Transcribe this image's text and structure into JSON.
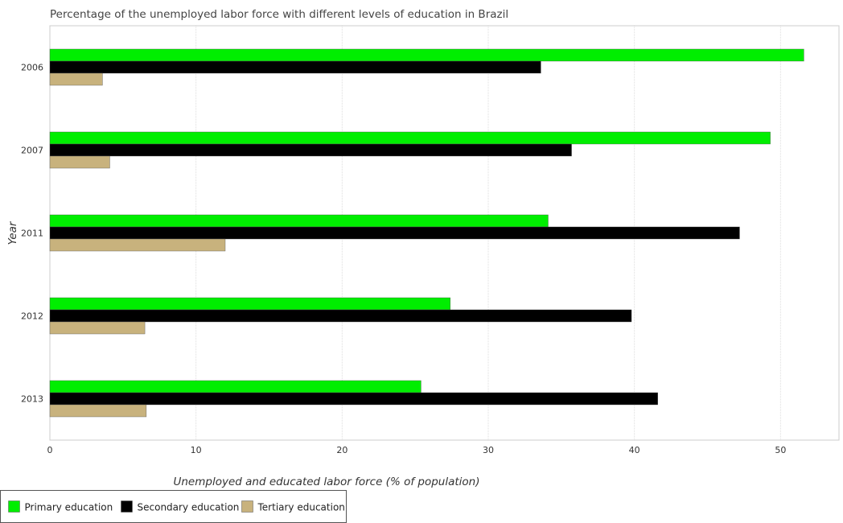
{
  "chart_data": {
    "type": "bar",
    "orientation": "horizontal",
    "title": "Percentage of the unemployed labor force with different levels of education in Brazil",
    "xlabel": "Unemployed and educated labor force (% of population)",
    "ylabel": "Year",
    "categories": [
      "2006",
      "2007",
      "2011",
      "2012",
      "2013"
    ],
    "xlim": [
      0,
      54
    ],
    "xticks": [
      0,
      10,
      20,
      30,
      40,
      50
    ],
    "grid": "vertical",
    "legend_position": "bottom-left",
    "series": [
      {
        "name": "Primary education",
        "color": "#00ee00",
        "values": [
          51.6,
          49.3,
          34.1,
          27.4,
          25.4
        ]
      },
      {
        "name": "Secondary education",
        "color": "#000000",
        "values": [
          33.6,
          35.7,
          47.2,
          39.8,
          41.6
        ]
      },
      {
        "name": "Tertiary education",
        "color": "#c8b27d",
        "values": [
          3.6,
          4.1,
          12.0,
          6.5,
          6.6
        ]
      }
    ]
  }
}
